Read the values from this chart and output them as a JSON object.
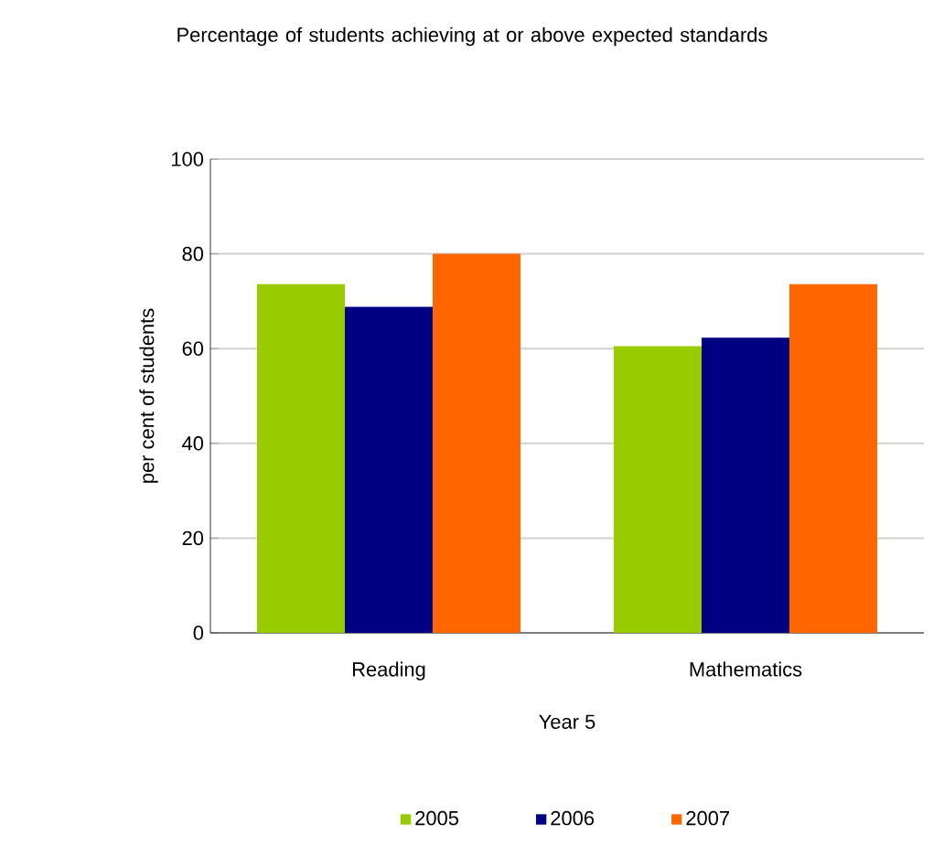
{
  "chart_data": {
    "type": "bar",
    "title": "Percentage of students achieving at or above expected standards",
    "xlabel": "Year 5",
    "ylabel": "per cent of students",
    "categories": [
      "Reading",
      "Mathematics"
    ],
    "series": [
      {
        "name": "2005",
        "color": "#99cc00",
        "values": [
          73.6,
          60.5
        ]
      },
      {
        "name": "2006",
        "color": "#000080",
        "values": [
          68.8,
          62.3
        ]
      },
      {
        "name": "2007",
        "color": "#ff6600",
        "values": [
          80,
          73.6
        ]
      }
    ],
    "ylim": [
      0,
      100
    ],
    "yticks": [
      0,
      20,
      40,
      60,
      80,
      100
    ],
    "grid": "y",
    "legend": "bottom"
  }
}
